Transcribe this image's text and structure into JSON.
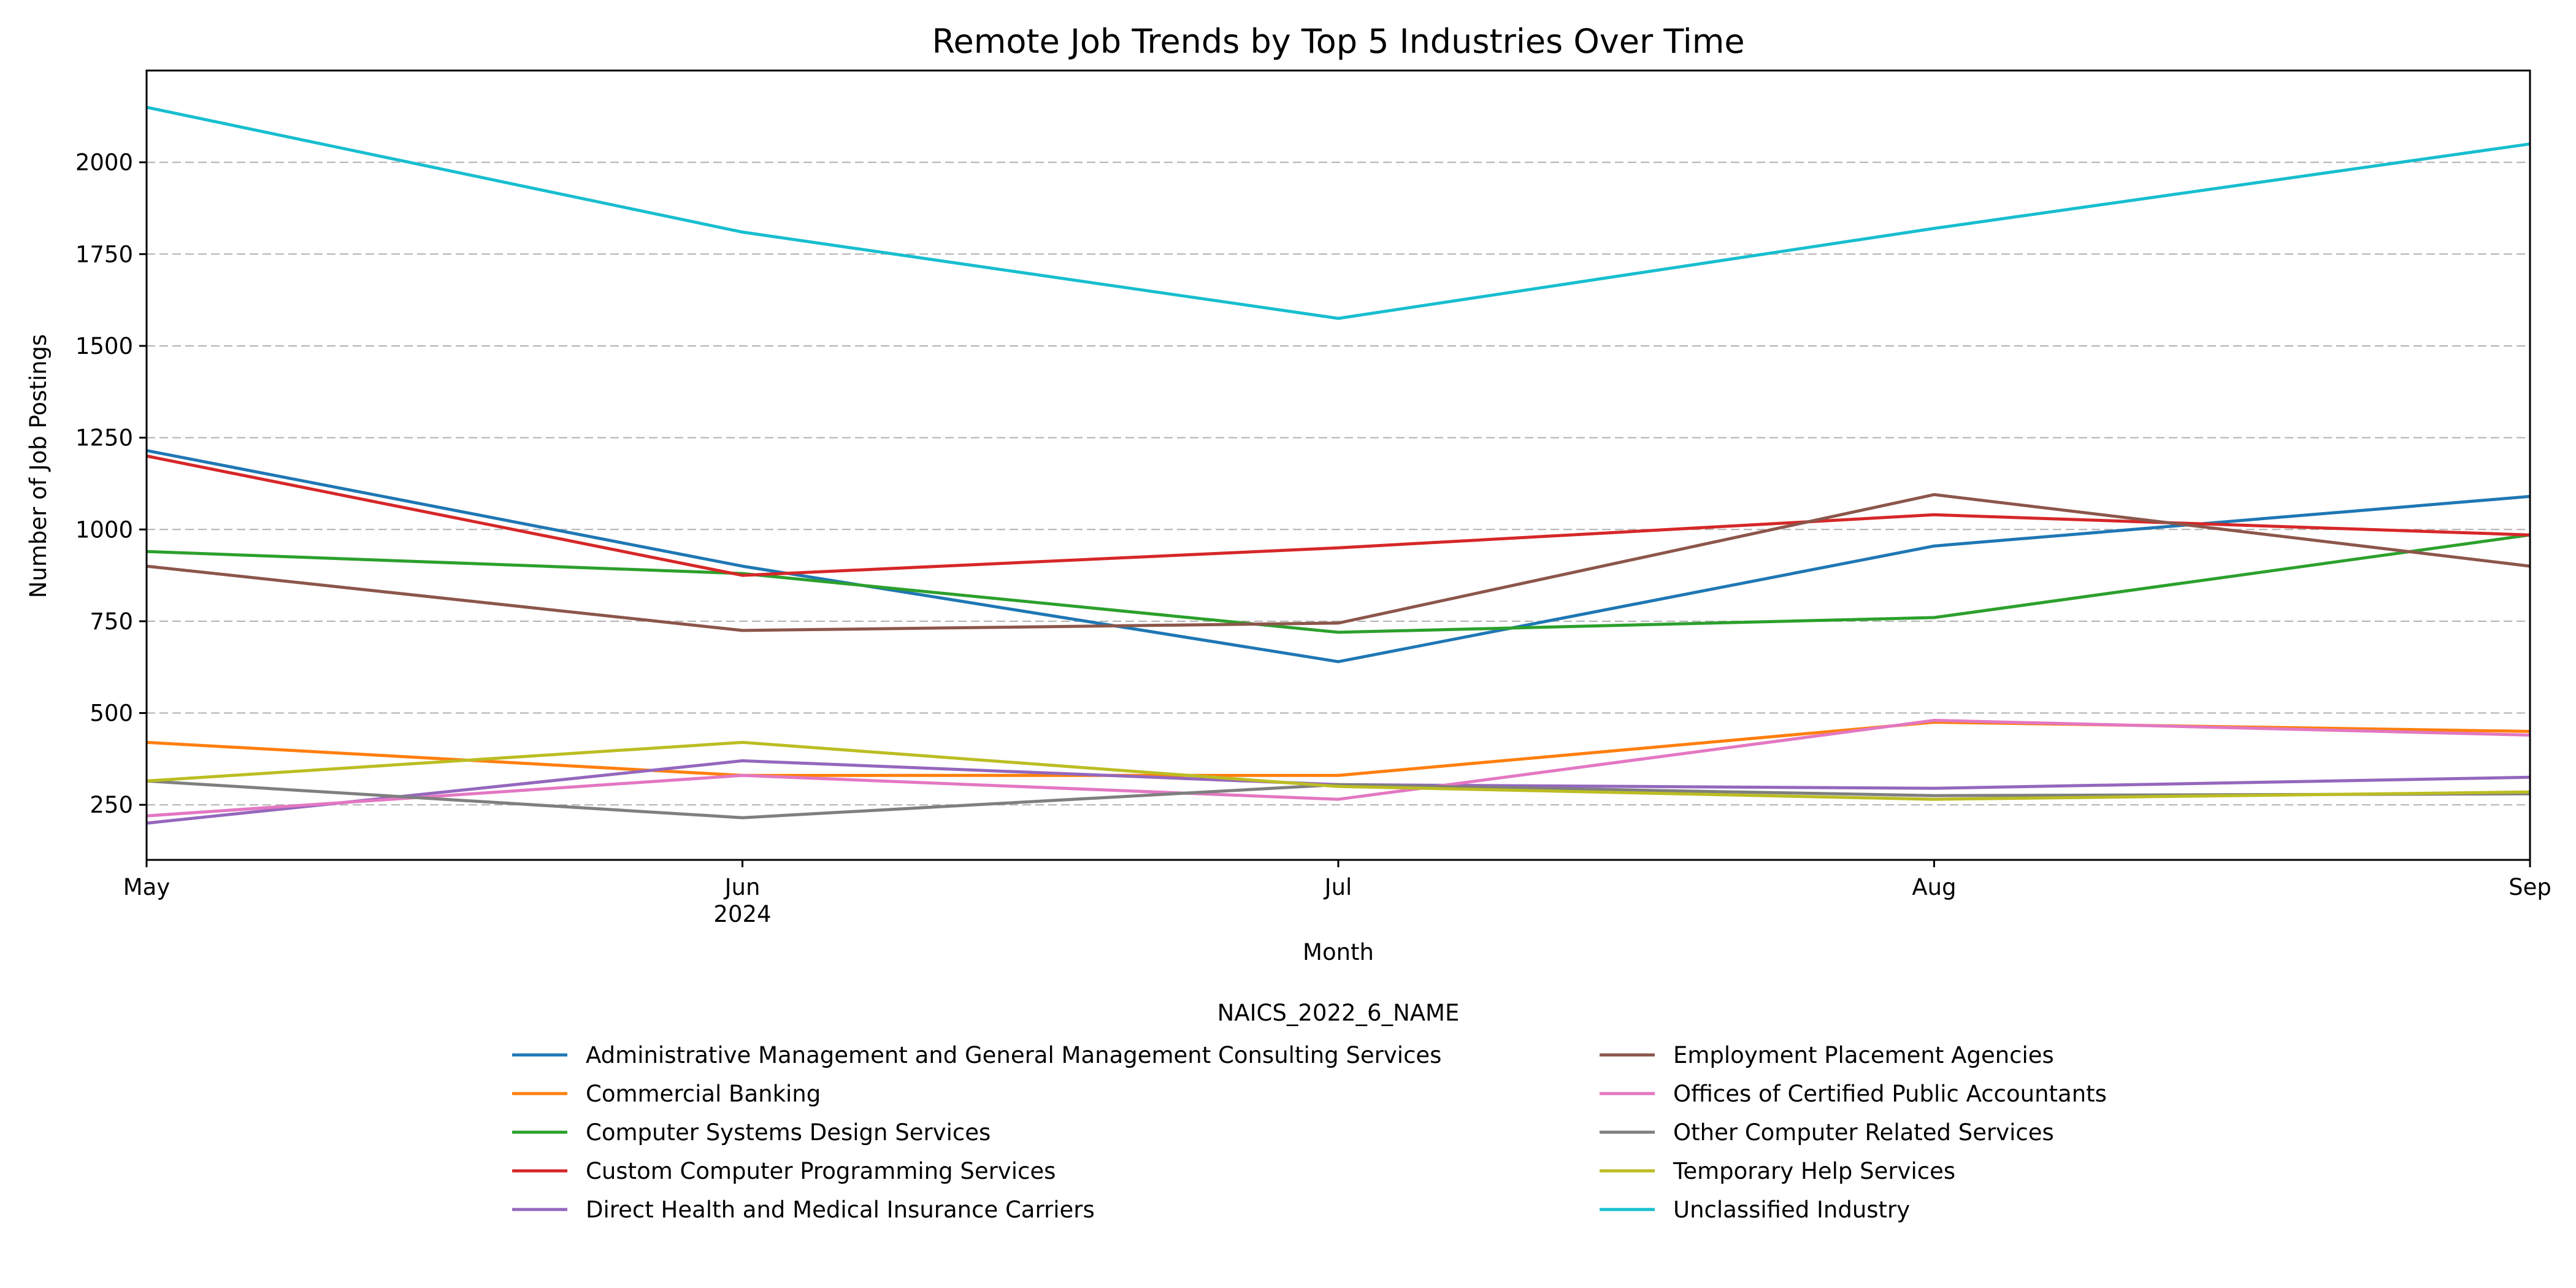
{
  "chart_data": {
    "type": "line",
    "title": "Remote Job Trends by Top 5 Industries Over Time",
    "xlabel": "Month",
    "ylabel": "Number of Job Postings",
    "categories": [
      "May",
      "Jun",
      "Jul",
      "Aug",
      "Sep"
    ],
    "x_year_label": "2024",
    "ylim": [
      100,
      2250
    ],
    "yticks": [
      250,
      500,
      750,
      1000,
      1250,
      1500,
      1750,
      2000
    ],
    "grid": "y-dashed",
    "legend_title": "NAICS_2022_6_NAME",
    "legend_position": "bottom",
    "series": [
      {
        "name": "Administrative Management and General Management Consulting Services",
        "color": "#1f77b4",
        "values": [
          1215,
          900,
          640,
          955,
          1090
        ]
      },
      {
        "name": "Commercial Banking",
        "color": "#ff7f0e",
        "values": [
          420,
          330,
          330,
          475,
          450
        ]
      },
      {
        "name": "Computer Systems Design Services",
        "color": "#2ca02c",
        "values": [
          940,
          880,
          720,
          760,
          985
        ]
      },
      {
        "name": "Custom Computer Programming Services",
        "color": "#d62728",
        "values": [
          1200,
          875,
          950,
          1040,
          985
        ]
      },
      {
        "name": "Direct Health and Medical Insurance Carriers",
        "color": "#9467bd",
        "values": [
          200,
          370,
          305,
          295,
          325
        ]
      },
      {
        "name": "Employment Placement Agencies",
        "color": "#8c564b",
        "values": [
          900,
          725,
          745,
          1095,
          900
        ]
      },
      {
        "name": "Offices of Certified Public Accountants",
        "color": "#e377c2",
        "values": [
          220,
          330,
          265,
          480,
          440
        ]
      },
      {
        "name": "Other Computer Related Services",
        "color": "#7f7f7f",
        "values": [
          315,
          215,
          305,
          275,
          280
        ]
      },
      {
        "name": "Temporary Help Services",
        "color": "#bcbd22",
        "values": [
          315,
          420,
          300,
          265,
          285
        ]
      },
      {
        "name": "Unclassified Industry",
        "color": "#17becf",
        "values": [
          2150,
          1810,
          1575,
          1820,
          2050
        ]
      }
    ]
  }
}
